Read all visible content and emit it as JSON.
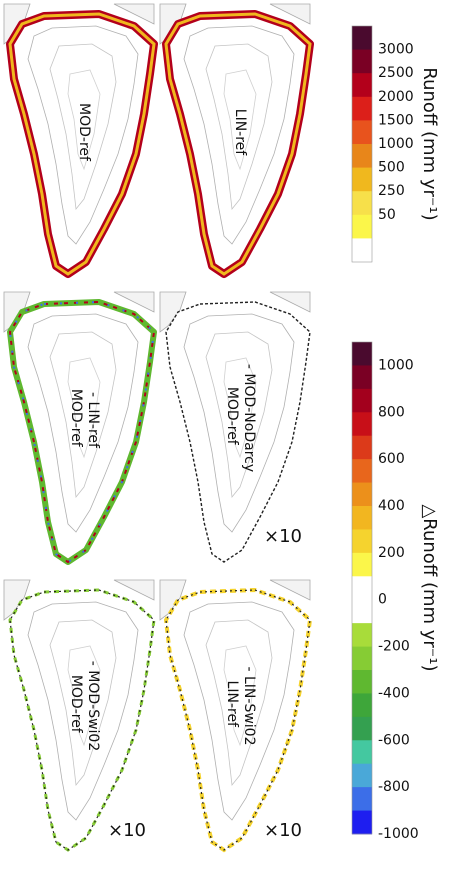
{
  "panels": [
    {
      "label_lines": [
        "MOD-ref"
      ],
      "multiplier": "",
      "scheme": "runoff"
    },
    {
      "label_lines": [
        "LIN-ref"
      ],
      "multiplier": "",
      "scheme": "runoff"
    },
    {
      "label_lines": [
        "MOD-ref",
        "- LIN-ref"
      ],
      "multiplier": "",
      "scheme": "diff_mixed"
    },
    {
      "label_lines": [
        "MOD-ref",
        "- MOD-NoDarcy"
      ],
      "multiplier": "×10",
      "scheme": "diff_black"
    },
    {
      "label_lines": [
        "MOD-ref",
        "- MOD-Swi02"
      ],
      "multiplier": "×10",
      "scheme": "diff_swi_mod"
    },
    {
      "label_lines": [
        "LIN-ref",
        "- LIN-Swi02"
      ],
      "multiplier": "×10",
      "scheme": "diff_swi_lin"
    }
  ],
  "colorbars": [
    {
      "title_html": "Runoff (mm yr⁻¹)",
      "ticks": [
        "3000",
        "2500",
        "2000",
        "1500",
        "1000",
        "500",
        "250",
        "50"
      ],
      "colors": [
        "#4a0a2e",
        "#7a0024",
        "#b3001b",
        "#dc1f1a",
        "#e8531d",
        "#e8861a",
        "#f0b81e",
        "#f7e04a",
        "#fbf64a",
        "#ffffff"
      ]
    },
    {
      "title_html": "△Runoff (mm yr⁻¹)",
      "ticks": [
        "1000",
        "800",
        "600",
        "400",
        "200",
        "0",
        "-200",
        "-400",
        "-600",
        "-800",
        "-1000"
      ],
      "colors": [
        "#4a0a2e",
        "#7a0024",
        "#a3001d",
        "#c80f18",
        "#dc3a1a",
        "#e8661c",
        "#ec901b",
        "#f2b620",
        "#f5d32e",
        "#fbf64a",
        "#ffffff",
        "#ffffff",
        "#a8dc3a",
        "#86cc34",
        "#5fb830",
        "#3ea63a",
        "#34a050",
        "#44c8a0",
        "#4aa8d8",
        "#3c6ee8",
        "#1e1ef0"
      ]
    }
  ],
  "colors": {
    "outline": "#888888",
    "contour": "#b0b0b0",
    "runoff_inner": "#f0b81e",
    "runoff_outer": "#b3001b",
    "runoff_edge": "#4a0a2e",
    "diff_green": "#5fb830",
    "diff_blue": "#3c6ee8",
    "diff_yellow": "#f5d32e",
    "diff_black": "#222222"
  }
}
